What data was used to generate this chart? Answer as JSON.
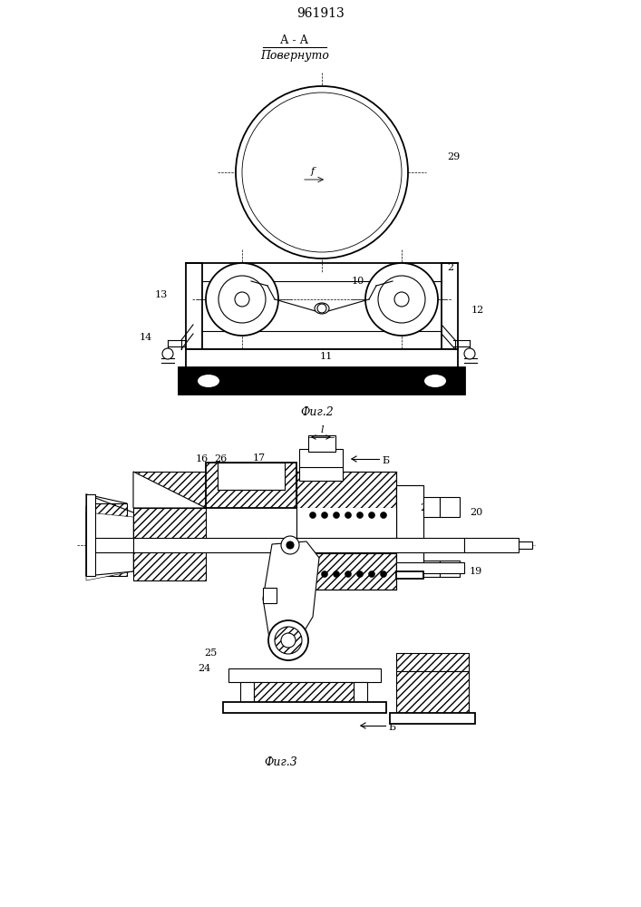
{
  "title": "961913",
  "fig2_label": "Фиг.2",
  "fig3_label": "Фиг.3",
  "section_label": "А - А",
  "section_sublabel": "Повернуто",
  "bg_color": "#ffffff",
  "line_color": "#000000"
}
